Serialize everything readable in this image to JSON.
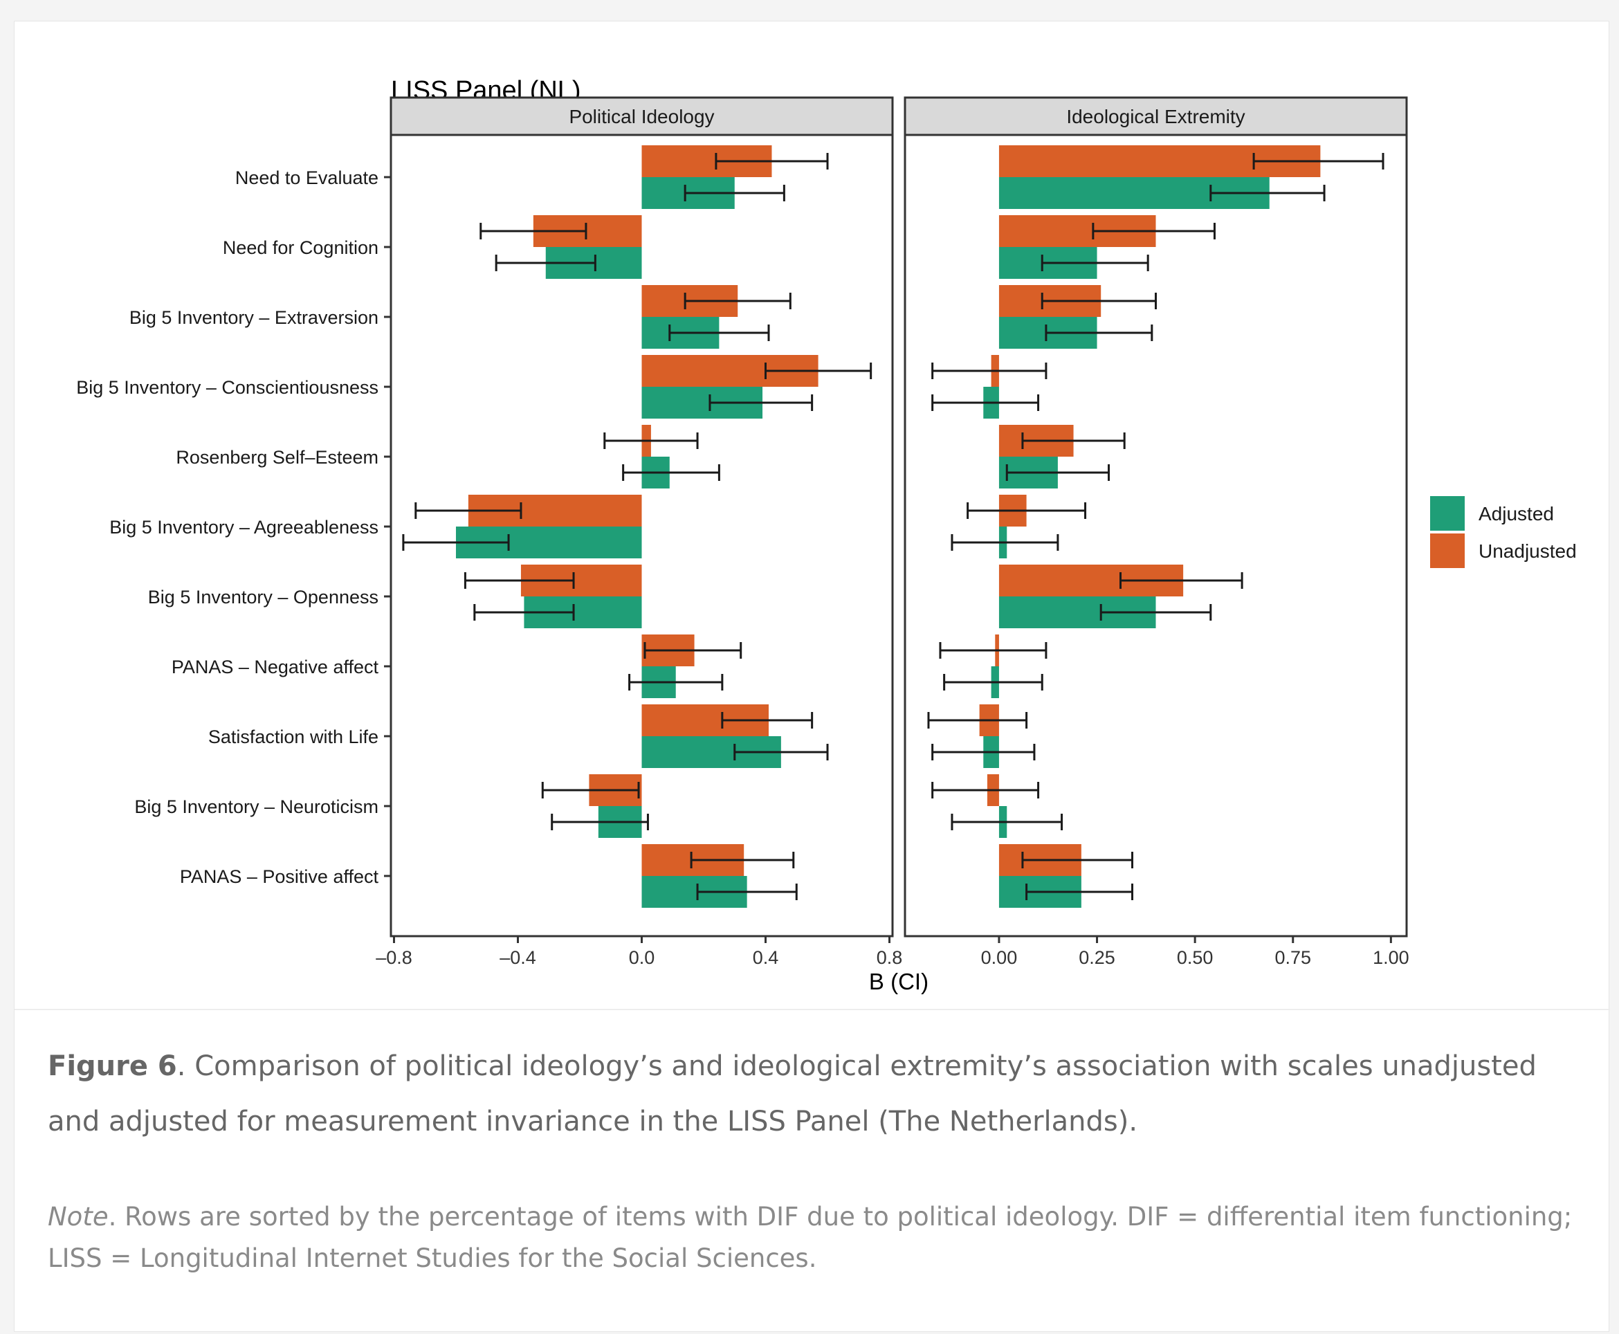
{
  "chart_data": {
    "type": "bar",
    "orientation": "horizontal",
    "title": "LISS Panel (NL)",
    "xlabel": "B (CI)",
    "categories": [
      "Need to Evaluate",
      "Need for Cognition",
      "Big 5 Inventory – Extraversion",
      "Big 5 Inventory – Conscientiousness",
      "Rosenberg Self–Esteem",
      "Big 5 Inventory – Agreeableness",
      "Big 5 Inventory – Openness",
      "PANAS – Negative affect",
      "Satisfaction with Life",
      "Big 5 Inventory – Neuroticism",
      "PANAS – Positive affect"
    ],
    "legend": {
      "position": "right",
      "items": [
        {
          "label": "Adjusted",
          "color": "#1f9e77"
        },
        {
          "label": "Unadjusted",
          "color": "#d95f27"
        }
      ]
    },
    "panels": [
      {
        "title": "Political Ideology",
        "xlim": [
          -0.81,
          0.81
        ],
        "ticks": [
          -0.8,
          -0.4,
          0.0,
          0.4,
          0.8
        ],
        "tick_labels": [
          "–0.8",
          "–0.4",
          "0.0",
          "0.4",
          "0.8"
        ],
        "series": [
          {
            "name": "Unadjusted",
            "values": [
              0.42,
              -0.35,
              0.31,
              0.57,
              0.03,
              -0.56,
              -0.39,
              0.17,
              0.41,
              -0.17,
              0.33
            ],
            "ci_low": [
              0.24,
              -0.52,
              0.14,
              0.4,
              -0.12,
              -0.73,
              -0.57,
              0.01,
              0.26,
              -0.32,
              0.16
            ],
            "ci_high": [
              0.6,
              -0.18,
              0.48,
              0.74,
              0.18,
              -0.39,
              -0.22,
              0.32,
              0.55,
              -0.01,
              0.49
            ]
          },
          {
            "name": "Adjusted",
            "values": [
              0.3,
              -0.31,
              0.25,
              0.39,
              0.09,
              -0.6,
              -0.38,
              0.11,
              0.45,
              -0.14,
              0.34
            ],
            "ci_low": [
              0.14,
              -0.47,
              0.09,
              0.22,
              -0.06,
              -0.77,
              -0.54,
              -0.04,
              0.3,
              -0.29,
              0.18
            ],
            "ci_high": [
              0.46,
              -0.15,
              0.41,
              0.55,
              0.25,
              -0.43,
              -0.22,
              0.26,
              0.6,
              0.02,
              0.5
            ]
          }
        ]
      },
      {
        "title": "Ideological Extremity",
        "xlim": [
          -0.24,
          1.04
        ],
        "ticks": [
          0.0,
          0.25,
          0.5,
          0.75,
          1.0
        ],
        "tick_labels": [
          "0.00",
          "0.25",
          "0.50",
          "0.75",
          "1.00"
        ],
        "series": [
          {
            "name": "Unadjusted",
            "values": [
              0.82,
              0.4,
              0.26,
              -0.02,
              0.19,
              0.07,
              0.47,
              -0.01,
              -0.05,
              -0.03,
              0.21
            ],
            "ci_low": [
              0.65,
              0.24,
              0.11,
              -0.17,
              0.06,
              -0.08,
              0.31,
              -0.15,
              -0.18,
              -0.17,
              0.06
            ],
            "ci_high": [
              0.98,
              0.55,
              0.4,
              0.12,
              0.32,
              0.22,
              0.62,
              0.12,
              0.07,
              0.1,
              0.34
            ]
          },
          {
            "name": "Adjusted",
            "values": [
              0.69,
              0.25,
              0.25,
              -0.04,
              0.15,
              0.02,
              0.4,
              -0.02,
              -0.04,
              0.02,
              0.21
            ],
            "ci_low": [
              0.54,
              0.11,
              0.12,
              -0.17,
              0.02,
              -0.12,
              0.26,
              -0.14,
              -0.17,
              -0.12,
              0.07
            ],
            "ci_high": [
              0.83,
              0.38,
              0.39,
              0.1,
              0.28,
              0.15,
              0.54,
              0.11,
              0.09,
              0.16,
              0.34
            ]
          }
        ]
      }
    ]
  },
  "caption": {
    "figure_label": "Figure 6",
    "text": ". Comparison of political ideology’s and ideological extremity’s association with scales unadjusted and adjusted for measurement invariance in the LISS Panel (The Netherlands).",
    "note_label": "Note",
    "note_text": ". Rows are sorted by the percentage of items with DIF due to political ideology. DIF = differential item functioning; LISS = Longitudinal Internet Studies for the Social Sciences."
  }
}
